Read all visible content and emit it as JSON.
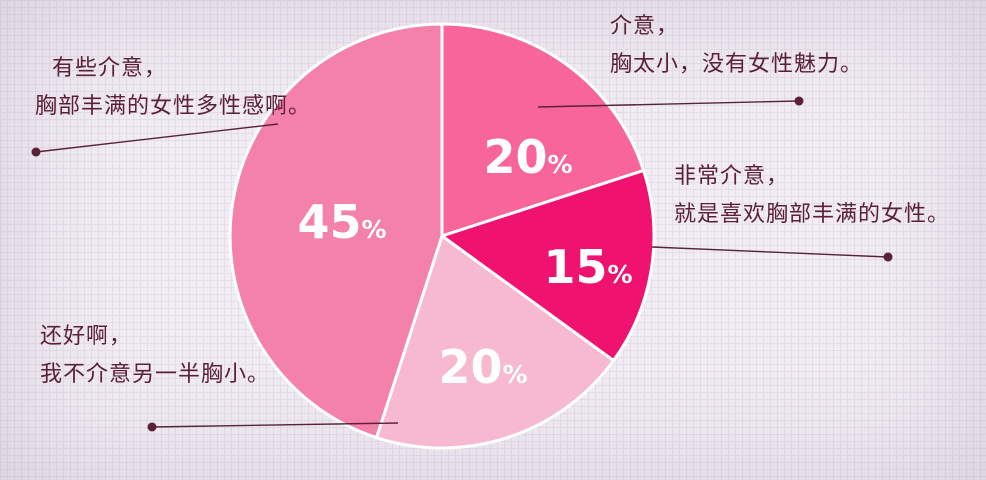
{
  "chart_data": {
    "type": "pie",
    "unit": "%",
    "start_angle_deg": -90,
    "direction": "clockwise",
    "value_label_color": "#ffffff",
    "slices": [
      {
        "label": "介意，胸太小，没有女性魅力。",
        "value": 20,
        "color": "#f8659a"
      },
      {
        "label": "非常介意，就是喜欢胸部丰满的女性。",
        "value": 15,
        "color": "#f0126f"
      },
      {
        "label": "还好啊，我不介意另一半胸小。",
        "value": 20,
        "color": "#f7b9d0"
      },
      {
        "label": "有些介意，胸部丰满的女性多性感啊。",
        "value": 45,
        "color": "#f481a9"
      }
    ]
  },
  "annotations": {
    "some_mind": {
      "line1": "有些介意，",
      "line2": "胸部丰满的女性多性感啊。"
    },
    "mind": {
      "line1": "介意，",
      "line2": "胸太小，没有女性魅力。"
    },
    "very_mind": {
      "line1": "非常介意，",
      "line2": "就是喜欢胸部丰满的女性。"
    },
    "its_ok": {
      "line1": "还好啊，",
      "line2": "我不介意另一半胸小。"
    }
  },
  "colors": {
    "text": "#5b2036",
    "background": "#f2edf4",
    "grid_line": "#e4dee9",
    "connector": "#5a2236"
  }
}
